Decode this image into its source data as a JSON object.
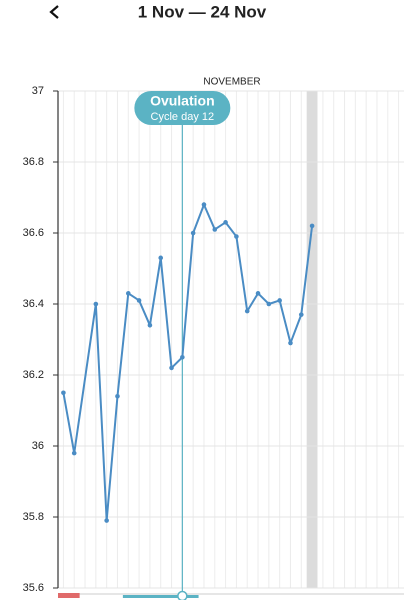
{
  "header": {
    "title": "1 Nov — 24 Nov"
  },
  "chart_data": {
    "type": "line",
    "month_label": "NOVEMBER",
    "x": [
      1,
      2,
      4,
      5,
      6,
      7,
      8,
      9,
      10,
      11,
      12,
      13,
      14,
      15,
      16,
      17,
      18,
      19,
      20,
      21,
      22,
      23,
      24
    ],
    "series": [
      {
        "color": "#4a8cc4",
        "values": [
          36.15,
          35.98,
          36.4,
          35.79,
          36.14,
          36.43,
          36.41,
          36.34,
          36.53,
          36.22,
          36.25,
          36.6,
          36.68,
          36.61,
          36.63,
          36.59,
          36.38,
          36.43,
          36.4,
          36.41,
          36.29,
          36.37,
          36.62
        ]
      }
    ],
    "xlim": [
      0.5,
      32.5
    ],
    "ylim": [
      35.6,
      37
    ],
    "yticks": [
      35.6,
      35.8,
      36,
      36.2,
      36.4,
      36.6,
      36.8,
      37
    ],
    "grid": true,
    "annotation": {
      "x": 12,
      "label": "Ovulation",
      "sublabel": "Cycle day 12",
      "color": "#5bb3c4"
    },
    "highlight_x": 24,
    "period_range": [
      0.5,
      2.5
    ],
    "fertile_range": [
      6.5,
      13.5
    ]
  }
}
